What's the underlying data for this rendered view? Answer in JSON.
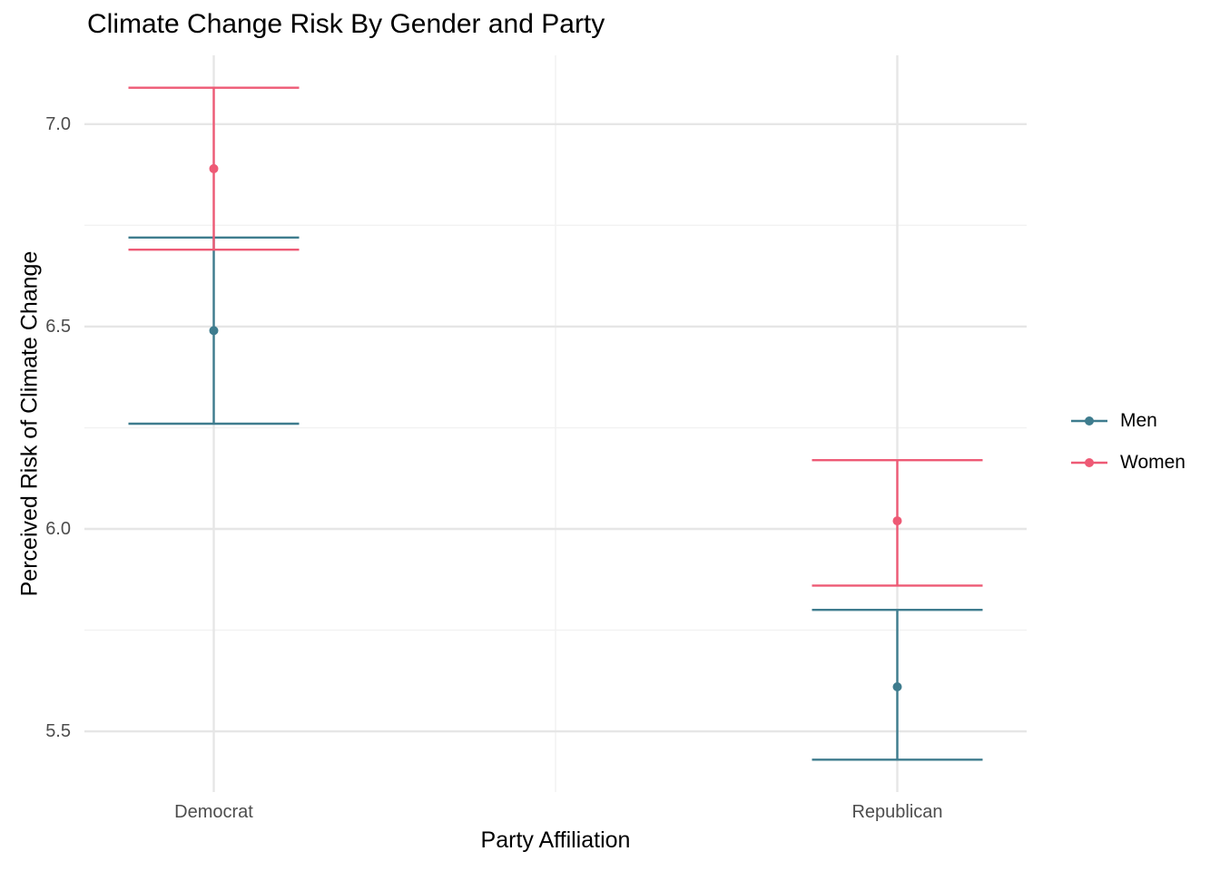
{
  "chart_data": {
    "type": "errorbar",
    "title": "Climate Change Risk By Gender and Party",
    "xlabel": "Party Affiliation",
    "ylabel": "Perceived Risk of Climate Change",
    "categories": [
      "Democrat",
      "Republican"
    ],
    "series": [
      {
        "name": "Men",
        "color": "#3E7C8E",
        "means": [
          6.49,
          5.61
        ],
        "ci_low": [
          6.26,
          5.43
        ],
        "ci_high": [
          6.72,
          5.8
        ]
      },
      {
        "name": "Women",
        "color": "#EE5A75",
        "means": [
          6.89,
          6.02
        ],
        "ci_low": [
          6.69,
          5.86
        ],
        "ci_high": [
          7.09,
          6.17
        ]
      }
    ],
    "ylim": [
      5.35,
      7.17
    ],
    "yticks": [
      7.0,
      6.5,
      6.0,
      5.5
    ],
    "ytick_labels": [
      "7.0",
      "6.5",
      "6.0",
      "5.5"
    ],
    "yticks_minor": [
      6.75,
      6.25,
      5.75
    ],
    "grid": true,
    "legend_position": "right"
  },
  "style": {
    "background": "#FFFFFF",
    "grid_major_color": "#E6E6E6",
    "grid_minor_color": "#F2F2F2",
    "axis_text_color": "#4D4D4D",
    "title_color": "#000000"
  }
}
